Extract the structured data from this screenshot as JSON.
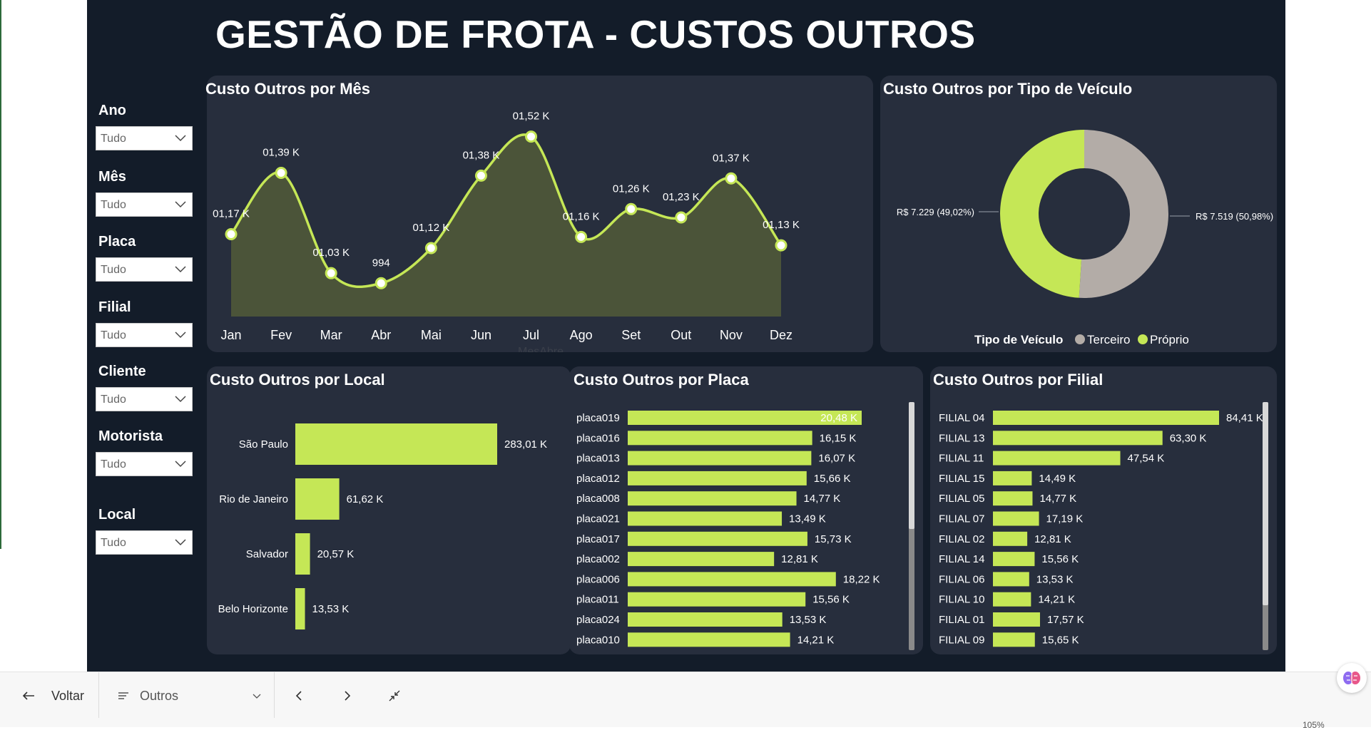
{
  "report": {
    "title": "GESTÃO DE FROTA - CUSTOS OUTROS"
  },
  "slicers": [
    {
      "label": "Ano",
      "value": "Tudo"
    },
    {
      "label": "Mês",
      "value": "Tudo"
    },
    {
      "label": "Placa",
      "value": "Tudo"
    },
    {
      "label": "Filial",
      "value": "Tudo"
    },
    {
      "label": "Cliente",
      "value": "Tudo"
    },
    {
      "label": "Motorista",
      "value": "Tudo"
    },
    {
      "label": "Local",
      "value": "Tudo"
    }
  ],
  "panels": {
    "mes": {
      "title": "Custo Outros por Mês"
    },
    "tipo": {
      "title": "Custo Outros por Tipo de Veículo"
    },
    "local": {
      "title": "Custo Outros por Local"
    },
    "placa": {
      "title": "Custo Outros por Placa"
    },
    "filial": {
      "title": "Custo Outros por Filial"
    }
  },
  "colors": {
    "accent": "#c5e756",
    "background": "#131c29",
    "panel": "#272e3d",
    "terceiro": "#b3aca7",
    "area_fill": "#4b5439"
  },
  "chart_data": [
    {
      "type": "area",
      "title": "Custo Outros por Mês",
      "xlabel": "MesAbre",
      "categories": [
        "Jan",
        "Fev",
        "Mar",
        "Abr",
        "Mai",
        "Jun",
        "Jul",
        "Ago",
        "Set",
        "Out",
        "Nov",
        "Dez"
      ],
      "values": [
        1170,
        1390,
        1030,
        994,
        1120,
        1380,
        1520,
        1160,
        1260,
        1230,
        1370,
        1130
      ],
      "data_labels": [
        "01,17 K",
        "01,39 K",
        "01,03 K",
        "994",
        "01,12 K",
        "01,38 K",
        "01,52 K",
        "01,16 K",
        "01,26 K",
        "01,23 K",
        "01,37 K",
        "01,13 K"
      ]
    },
    {
      "type": "pie",
      "title": "Custo Outros por Tipo de Veículo",
      "legend_title": "Tipo de Veículo",
      "slices": [
        {
          "name": "Terceiro",
          "value": 7519,
          "label": "R$ 7.519 (50,98%)",
          "color": "#b3aca7"
        },
        {
          "name": "Próprio",
          "value": 7229,
          "label": "R$ 7.229 (49,02%)",
          "color": "#c5e756"
        }
      ]
    },
    {
      "type": "bar",
      "title": "Custo Outros por Local",
      "categories": [
        "São Paulo",
        "Rio de Janeiro",
        "Salvador",
        "Belo Horizonte"
      ],
      "values": [
        283.01,
        61.62,
        20.57,
        13.53
      ],
      "data_labels": [
        "283,01 K",
        "61,62 K",
        "20,57 K",
        "13,53 K"
      ]
    },
    {
      "type": "bar",
      "title": "Custo Outros por Placa",
      "categories": [
        "placa019",
        "placa016",
        "placa013",
        "placa012",
        "placa008",
        "placa021",
        "placa017",
        "placa002",
        "placa006",
        "placa011",
        "placa024",
        "placa010"
      ],
      "values": [
        20.48,
        16.15,
        16.07,
        15.66,
        14.77,
        13.49,
        15.73,
        12.81,
        18.22,
        15.56,
        13.53,
        14.21
      ],
      "data_labels": [
        "20,48 K",
        "16,15 K",
        "16,07 K",
        "15,66 K",
        "14,77 K",
        "13,49 K",
        "15,73 K",
        "12,81 K",
        "18,22 K",
        "15,56 K",
        "13,53 K",
        "14,21 K"
      ]
    },
    {
      "type": "bar",
      "title": "Custo Outros por Filial",
      "categories": [
        "FILIAL 04",
        "FILIAL 13",
        "FILIAL 11",
        "FILIAL 15",
        "FILIAL 05",
        "FILIAL 07",
        "FILIAL 02",
        "FILIAL 14",
        "FILIAL 06",
        "FILIAL 10",
        "FILIAL 01",
        "FILIAL 09"
      ],
      "values": [
        84.41,
        63.3,
        47.54,
        14.49,
        14.77,
        17.19,
        12.81,
        15.56,
        13.53,
        14.21,
        17.57,
        15.65
      ],
      "data_labels": [
        "84,41 K",
        "63,30 K",
        "47,54 K",
        "14,49 K",
        "14,77 K",
        "17,19 K",
        "12,81 K",
        "15,56 K",
        "13,53 K",
        "14,21 K",
        "17,57 K",
        "15,65 K"
      ]
    }
  ],
  "taskbar": {
    "back_label": "Voltar",
    "page_label": "Outros",
    "back_icon": "arrow-left-icon",
    "page_icon": "list-icon",
    "prev_icon": "chevron-left-icon",
    "next_icon": "chevron-right-icon",
    "collapse_icon": "collapse-arrows-icon"
  },
  "status": {
    "zoom": "105%"
  }
}
